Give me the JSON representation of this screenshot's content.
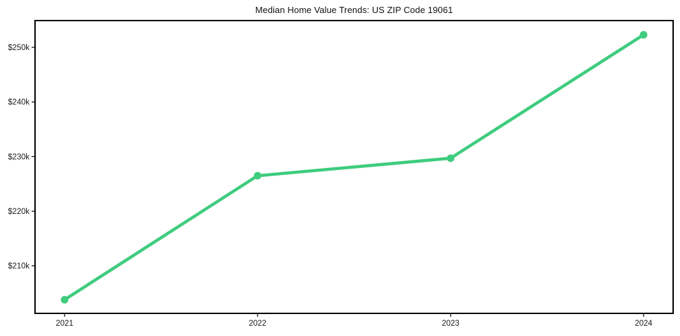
{
  "page": {
    "background_color": "#ffffff"
  },
  "chart_data": {
    "type": "line",
    "title": "Median Home Value Trends: US ZIP Code 19061",
    "xlabel": "",
    "ylabel": "",
    "x": [
      2021,
      2022,
      2023,
      2024
    ],
    "x_tick_labels": [
      "2021",
      "2022",
      "2023",
      "2024"
    ],
    "series": [
      {
        "name": "median-home-value",
        "values": [
          203800,
          226500,
          229700,
          252300
        ],
        "color": "#3ecc7e",
        "line_width": 4.5,
        "marker": "circle",
        "marker_radius": 5.5
      }
    ],
    "y_ticks": [
      210000,
      220000,
      230000,
      240000,
      250000
    ],
    "y_tick_labels": [
      "$210k",
      "$220k",
      "$230k",
      "$240k",
      "$250k"
    ],
    "ylim": [
      201300,
      254900
    ],
    "x_margin_frac": 0.0463,
    "grid": false,
    "legend": false,
    "frame_color": "#000000",
    "frame_width": 2,
    "tick_color": "#000000",
    "tick_length": 5,
    "text_color": "#1a1a1a"
  }
}
